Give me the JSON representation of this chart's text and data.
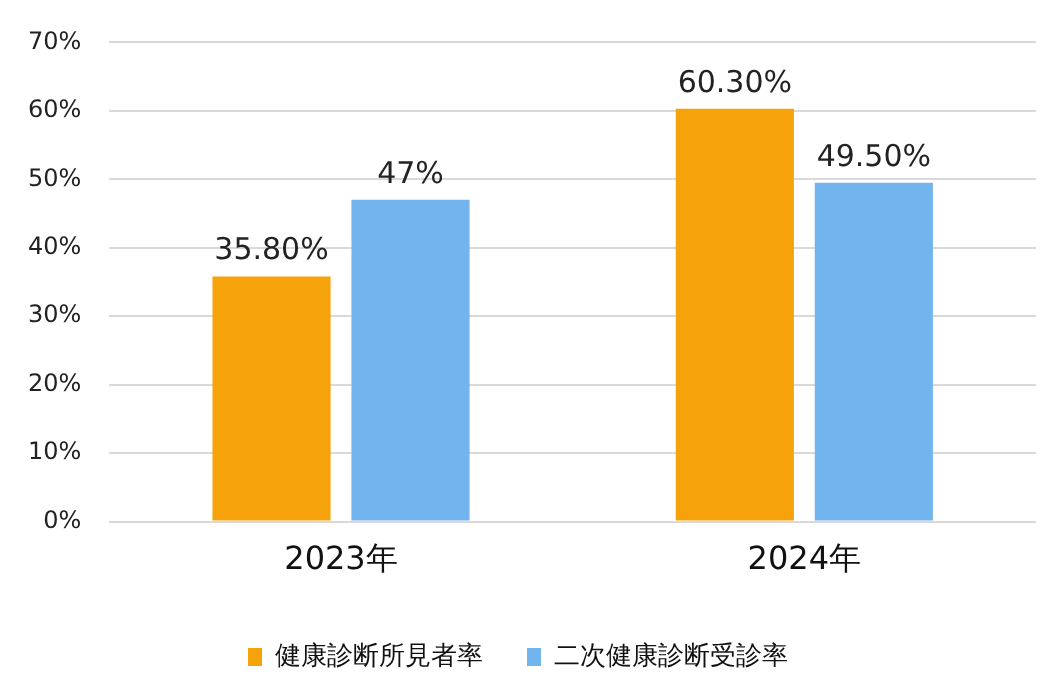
{
  "chart_data": {
    "type": "bar",
    "categories": [
      "2023年",
      "2024年"
    ],
    "series": [
      {
        "name": "健康診断所見者率",
        "color": "#f6a20a",
        "values": [
          35.8,
          60.3
        ],
        "value_labels": [
          "35.80%",
          "60.30%"
        ]
      },
      {
        "name": "二次健康診断受診率",
        "color": "#72b4ee",
        "values": [
          47,
          49.5
        ],
        "value_labels": [
          "47%",
          "49.50%"
        ]
      }
    ],
    "ylim": [
      0,
      70
    ],
    "yticks": [
      {
        "value": 0,
        "label": "0%"
      },
      {
        "value": 10,
        "label": "10%"
      },
      {
        "value": 20,
        "label": "20%"
      },
      {
        "value": 30,
        "label": "30%"
      },
      {
        "value": 40,
        "label": "40%"
      },
      {
        "value": 50,
        "label": "50%"
      },
      {
        "value": 60,
        "label": "60%"
      },
      {
        "value": 70,
        "label": "70%"
      }
    ],
    "grid": "y",
    "legend": "bottom"
  }
}
